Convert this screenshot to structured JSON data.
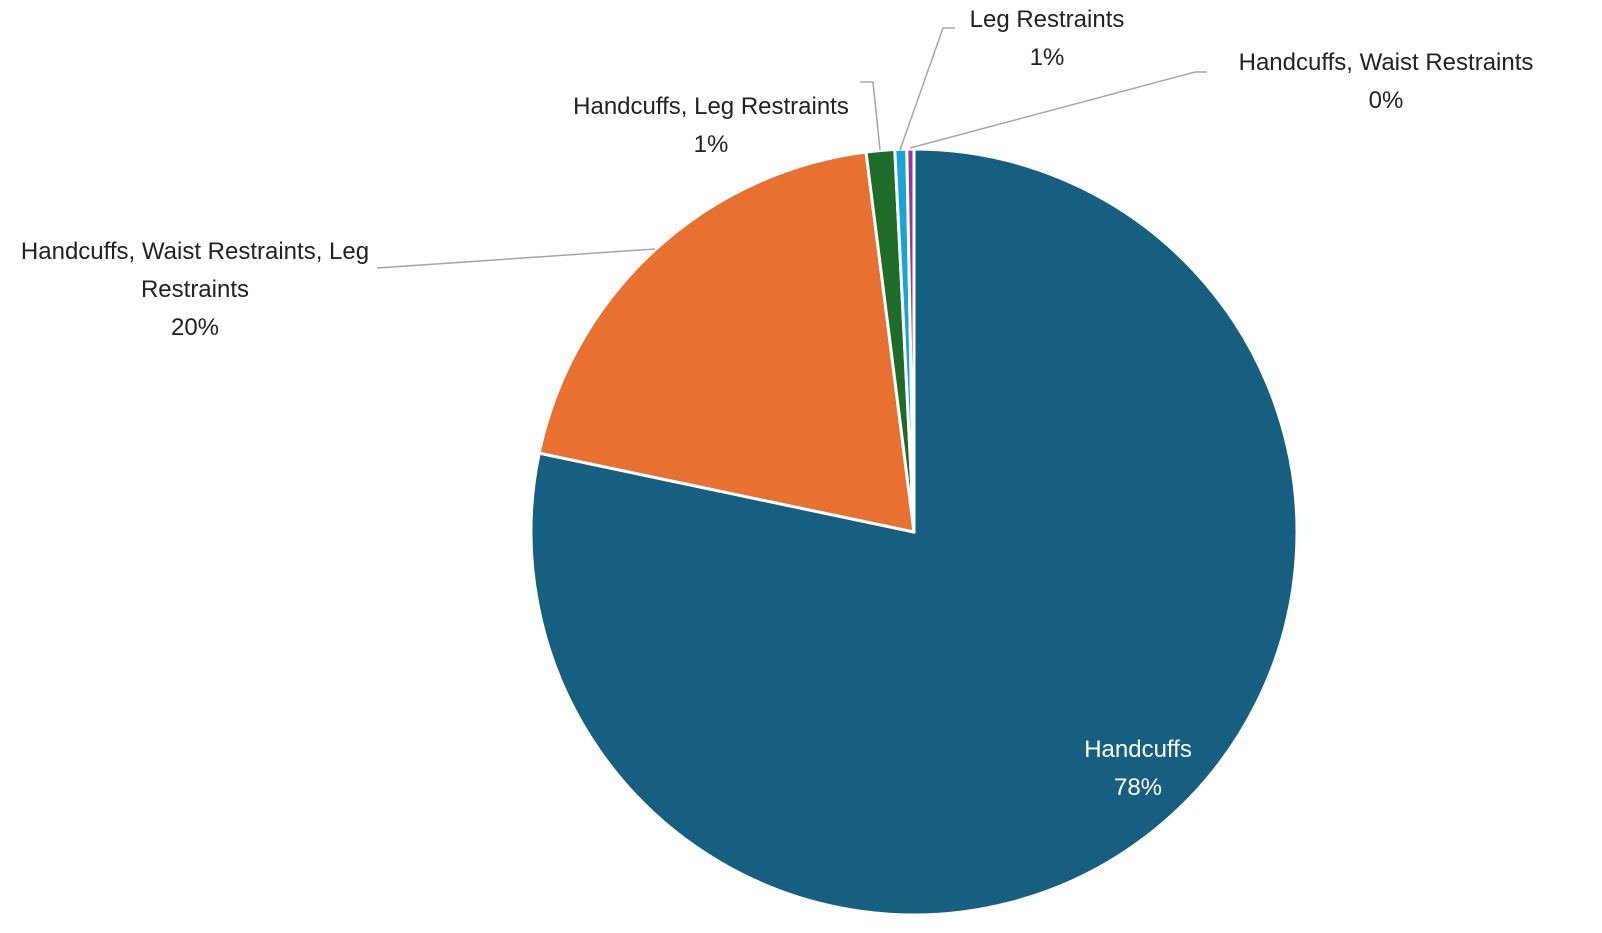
{
  "chart_data": {
    "type": "pie",
    "categories": [
      "Handcuffs",
      "Handcuffs, Waist Restraints, Leg Restraints",
      "Handcuffs, Leg Restraints",
      "Leg Restraints",
      "Handcuffs, Waist Restraints"
    ],
    "values": [
      78.3,
      19.7,
      1.2,
      0.5,
      0.3
    ],
    "value_labels": [
      "78%",
      "20%",
      "1%",
      "1%",
      "0%"
    ],
    "colors": [
      "#175f80",
      "#e87131",
      "#1e6b2a",
      "#1aa3d9",
      "#8e3aa6"
    ]
  }
}
